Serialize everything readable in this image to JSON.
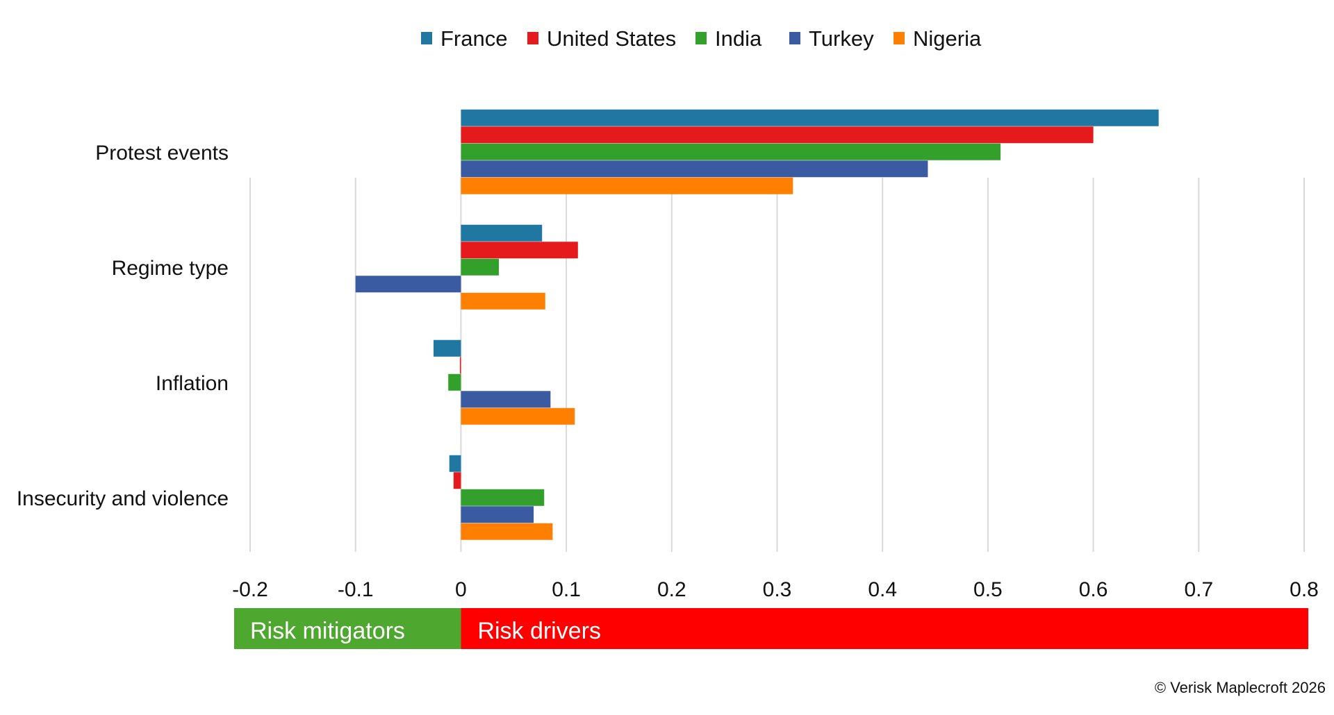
{
  "chart_data": {
    "type": "bar",
    "orientation": "horizontal",
    "categories": [
      "Protest events",
      "Regime type",
      "Inflation",
      "Insecurity and violence"
    ],
    "series": [
      {
        "name": "France",
        "color": "#1f77a2",
        "values": [
          0.662,
          0.077,
          -0.026,
          -0.011
        ]
      },
      {
        "name": "United States",
        "color": "#e41a1c",
        "values": [
          0.6,
          0.111,
          -0.001,
          -0.007
        ]
      },
      {
        "name": "India",
        "color": "#33a02c",
        "values": [
          0.512,
          0.036,
          -0.012,
          0.079
        ]
      },
      {
        "name": "Turkey",
        "color": "#3a5ba2",
        "values": [
          0.443,
          -0.1,
          0.085,
          0.069
        ]
      },
      {
        "name": "Nigeria",
        "color": "#ff7f00",
        "values": [
          0.315,
          0.08,
          0.108,
          0.087
        ]
      }
    ],
    "xlim": [
      -0.2,
      0.8
    ],
    "xticks": [
      "-0.2",
      "-0.1",
      "0",
      "0.1",
      "0.2",
      "0.3",
      "0.4",
      "0.5",
      "0.6",
      "0.7",
      "0.8"
    ],
    "grid": true,
    "legend": "top-center",
    "xlabel": "",
    "ylabel": "",
    "annotation_bar": {
      "mitigators_label": "Risk mitigators",
      "drivers_label": "Risk drivers",
      "mitigators_color": "#4ea72e",
      "drivers_color": "#ff0000"
    }
  },
  "footer": {
    "copyright": "© Verisk Maplecroft 2026"
  }
}
